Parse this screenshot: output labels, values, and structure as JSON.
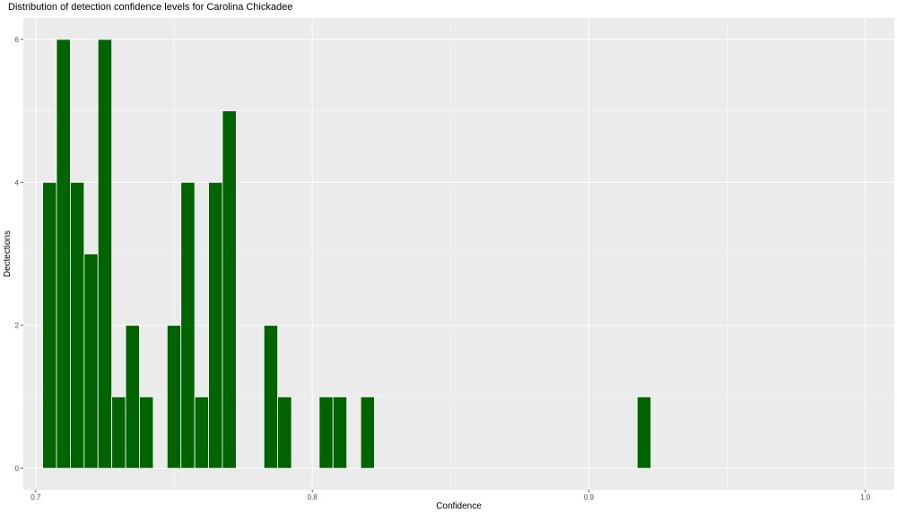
{
  "chart_data": {
    "type": "bar",
    "title": "Distribution of detection confidence levels for Carolina Chickadee",
    "xlabel": "Confidence",
    "ylabel": "Dectections",
    "xlim": [
      0.6955,
      1.0105
    ],
    "ylim": [
      -0.3,
      6.3
    ],
    "xticks": [
      0.7,
      0.8,
      0.9,
      1.0
    ],
    "xtick_labels": [
      "0.7",
      "0.8",
      "0.9",
      "1.0"
    ],
    "yticks": [
      0,
      2,
      4,
      6
    ],
    "ytick_labels": [
      "0",
      "2",
      "4",
      "6"
    ],
    "bin_width": 0.005,
    "bar_color": "#006400",
    "panel_color": "#ebebeb",
    "grid": true,
    "bins": [
      {
        "x": 0.705,
        "count": 4
      },
      {
        "x": 0.71,
        "count": 6
      },
      {
        "x": 0.715,
        "count": 4
      },
      {
        "x": 0.72,
        "count": 3
      },
      {
        "x": 0.725,
        "count": 6
      },
      {
        "x": 0.73,
        "count": 1
      },
      {
        "x": 0.735,
        "count": 2
      },
      {
        "x": 0.74,
        "count": 1
      },
      {
        "x": 0.745,
        "count": 0
      },
      {
        "x": 0.75,
        "count": 2
      },
      {
        "x": 0.755,
        "count": 4
      },
      {
        "x": 0.76,
        "count": 1
      },
      {
        "x": 0.765,
        "count": 4
      },
      {
        "x": 0.77,
        "count": 5
      },
      {
        "x": 0.775,
        "count": 0
      },
      {
        "x": 0.78,
        "count": 0
      },
      {
        "x": 0.785,
        "count": 2
      },
      {
        "x": 0.79,
        "count": 1
      },
      {
        "x": 0.795,
        "count": 0
      },
      {
        "x": 0.8,
        "count": 0
      },
      {
        "x": 0.805,
        "count": 1
      },
      {
        "x": 0.81,
        "count": 1
      },
      {
        "x": 0.815,
        "count": 0
      },
      {
        "x": 0.82,
        "count": 1
      },
      {
        "x": 0.92,
        "count": 1
      }
    ]
  }
}
